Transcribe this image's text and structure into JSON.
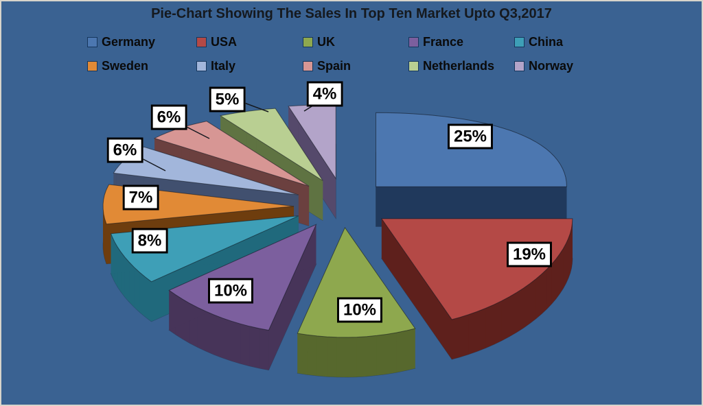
{
  "chart_data": {
    "type": "pie",
    "title": "Pie-Chart Showing The Sales In Top Ten Market Upto Q3,2017",
    "unit": "%",
    "style": {
      "effect": "3d-exploded",
      "start_angle_deg": 0,
      "direction": "clockwise",
      "legend_position": "top",
      "legend_rows": 2,
      "legend_cols": 5,
      "data_labels_shown": true
    },
    "slices": [
      {
        "label": "Germany",
        "value": 25,
        "data_label": "25%",
        "color": "#4C77B0",
        "side_color": "#20395C"
      },
      {
        "label": "USA",
        "value": 19,
        "data_label": "19%",
        "color": "#B44946",
        "side_color": "#5E201C"
      },
      {
        "label": "UK",
        "value": 10,
        "data_label": "10%",
        "color": "#8EA84E",
        "side_color": "#57682D"
      },
      {
        "label": "France",
        "value": 10,
        "data_label": "10%",
        "color": "#7C5F9E",
        "side_color": "#473459"
      },
      {
        "label": "China",
        "value": 8,
        "data_label": "8%",
        "color": "#3E9FB7",
        "side_color": "#20697C"
      },
      {
        "label": "Sweden",
        "value": 7,
        "data_label": "7%",
        "color": "#E18A36",
        "side_color": "#6E3D0E"
      },
      {
        "label": "Italy",
        "value": 6,
        "data_label": "6%",
        "color": "#A2B6DB",
        "side_color": "#41506F"
      },
      {
        "label": "Spain",
        "value": 6,
        "data_label": "6%",
        "color": "#D79694",
        "side_color": "#6B403F"
      },
      {
        "label": "Netherlands",
        "value": 5,
        "data_label": "5%",
        "color": "#B9CF92",
        "side_color": "#5F7342"
      },
      {
        "label": "Norway",
        "value": 4,
        "data_label": "4%",
        "color": "#B3A4C9",
        "side_color": "#55496B"
      }
    ]
  },
  "colors": {
    "background": "#3A6292",
    "frame_border": "#D8D4CB",
    "title_text": "#15191E",
    "legend_text": "#0A0A0A",
    "legend_swatch_border": "#16365C",
    "data_label_bg": "#FFFFFF",
    "data_label_border": "#000000",
    "data_label_text": "#000000",
    "leader_line": "#14181F"
  }
}
